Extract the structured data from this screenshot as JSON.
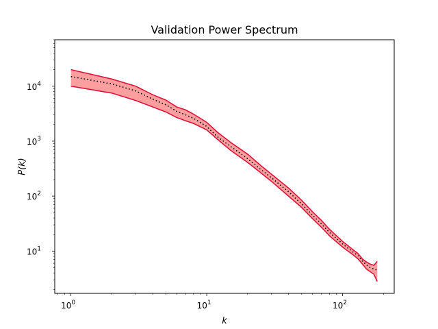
{
  "chart_data": {
    "type": "line",
    "title": "Validation Power Spectrum",
    "xlabel": "k",
    "ylabel": "P(k)",
    "xscale": "log",
    "yscale": "log",
    "xlim": [
      0.76,
      240
    ],
    "ylim": [
      1.7,
      70000
    ],
    "grid": false,
    "legend": "none",
    "x_ticks": [
      {
        "value": 1,
        "base": "10",
        "exp": "0"
      },
      {
        "value": 10,
        "base": "10",
        "exp": "1"
      },
      {
        "value": 100,
        "base": "10",
        "exp": "2"
      }
    ],
    "y_ticks": [
      {
        "value": 10,
        "base": "10",
        "exp": "1"
      },
      {
        "value": 100,
        "base": "10",
        "exp": "2"
      },
      {
        "value": 1000,
        "base": "10",
        "exp": "3"
      },
      {
        "value": 10000,
        "base": "10",
        "exp": "4"
      }
    ],
    "colors": {
      "band_fill": "#ff9e9e",
      "band_edge": "#dc143c",
      "mean_line": "#000000"
    },
    "x": [
      1,
      2,
      3,
      4,
      5,
      6,
      7,
      8,
      10,
      12,
      15,
      20,
      25,
      30,
      40,
      50,
      60,
      70,
      80,
      100,
      120,
      130,
      140,
      150,
      160,
      170,
      180
    ],
    "series": [
      {
        "values": [
          20000,
          13500,
          10000,
          7000,
          5600,
          4200,
          3700,
          3100,
          2200,
          1450,
          950,
          580,
          360,
          250,
          140,
          84,
          52,
          36,
          25,
          15,
          10.5,
          9,
          7.2,
          6.3,
          5.8,
          5.5,
          6.5
        ]
      },
      {
        "values": [
          15000,
          11000,
          8200,
          5800,
          4600,
          3500,
          3000,
          2600,
          1850,
          1200,
          800,
          480,
          305,
          215,
          120,
          72,
          45,
          31,
          22,
          13.5,
          9.5,
          8.2,
          6.6,
          5.6,
          5.0,
          4.7,
          4.5
        ]
      },
      {
        "values": [
          10000,
          7500,
          5500,
          4200,
          3400,
          2700,
          2350,
          2100,
          1600,
          1080,
          680,
          410,
          265,
          185,
          100,
          62,
          39,
          27,
          19,
          11.8,
          8.5,
          7.2,
          5.8,
          4.7,
          4.2,
          3.8,
          2.8
        ]
      }
    ]
  }
}
